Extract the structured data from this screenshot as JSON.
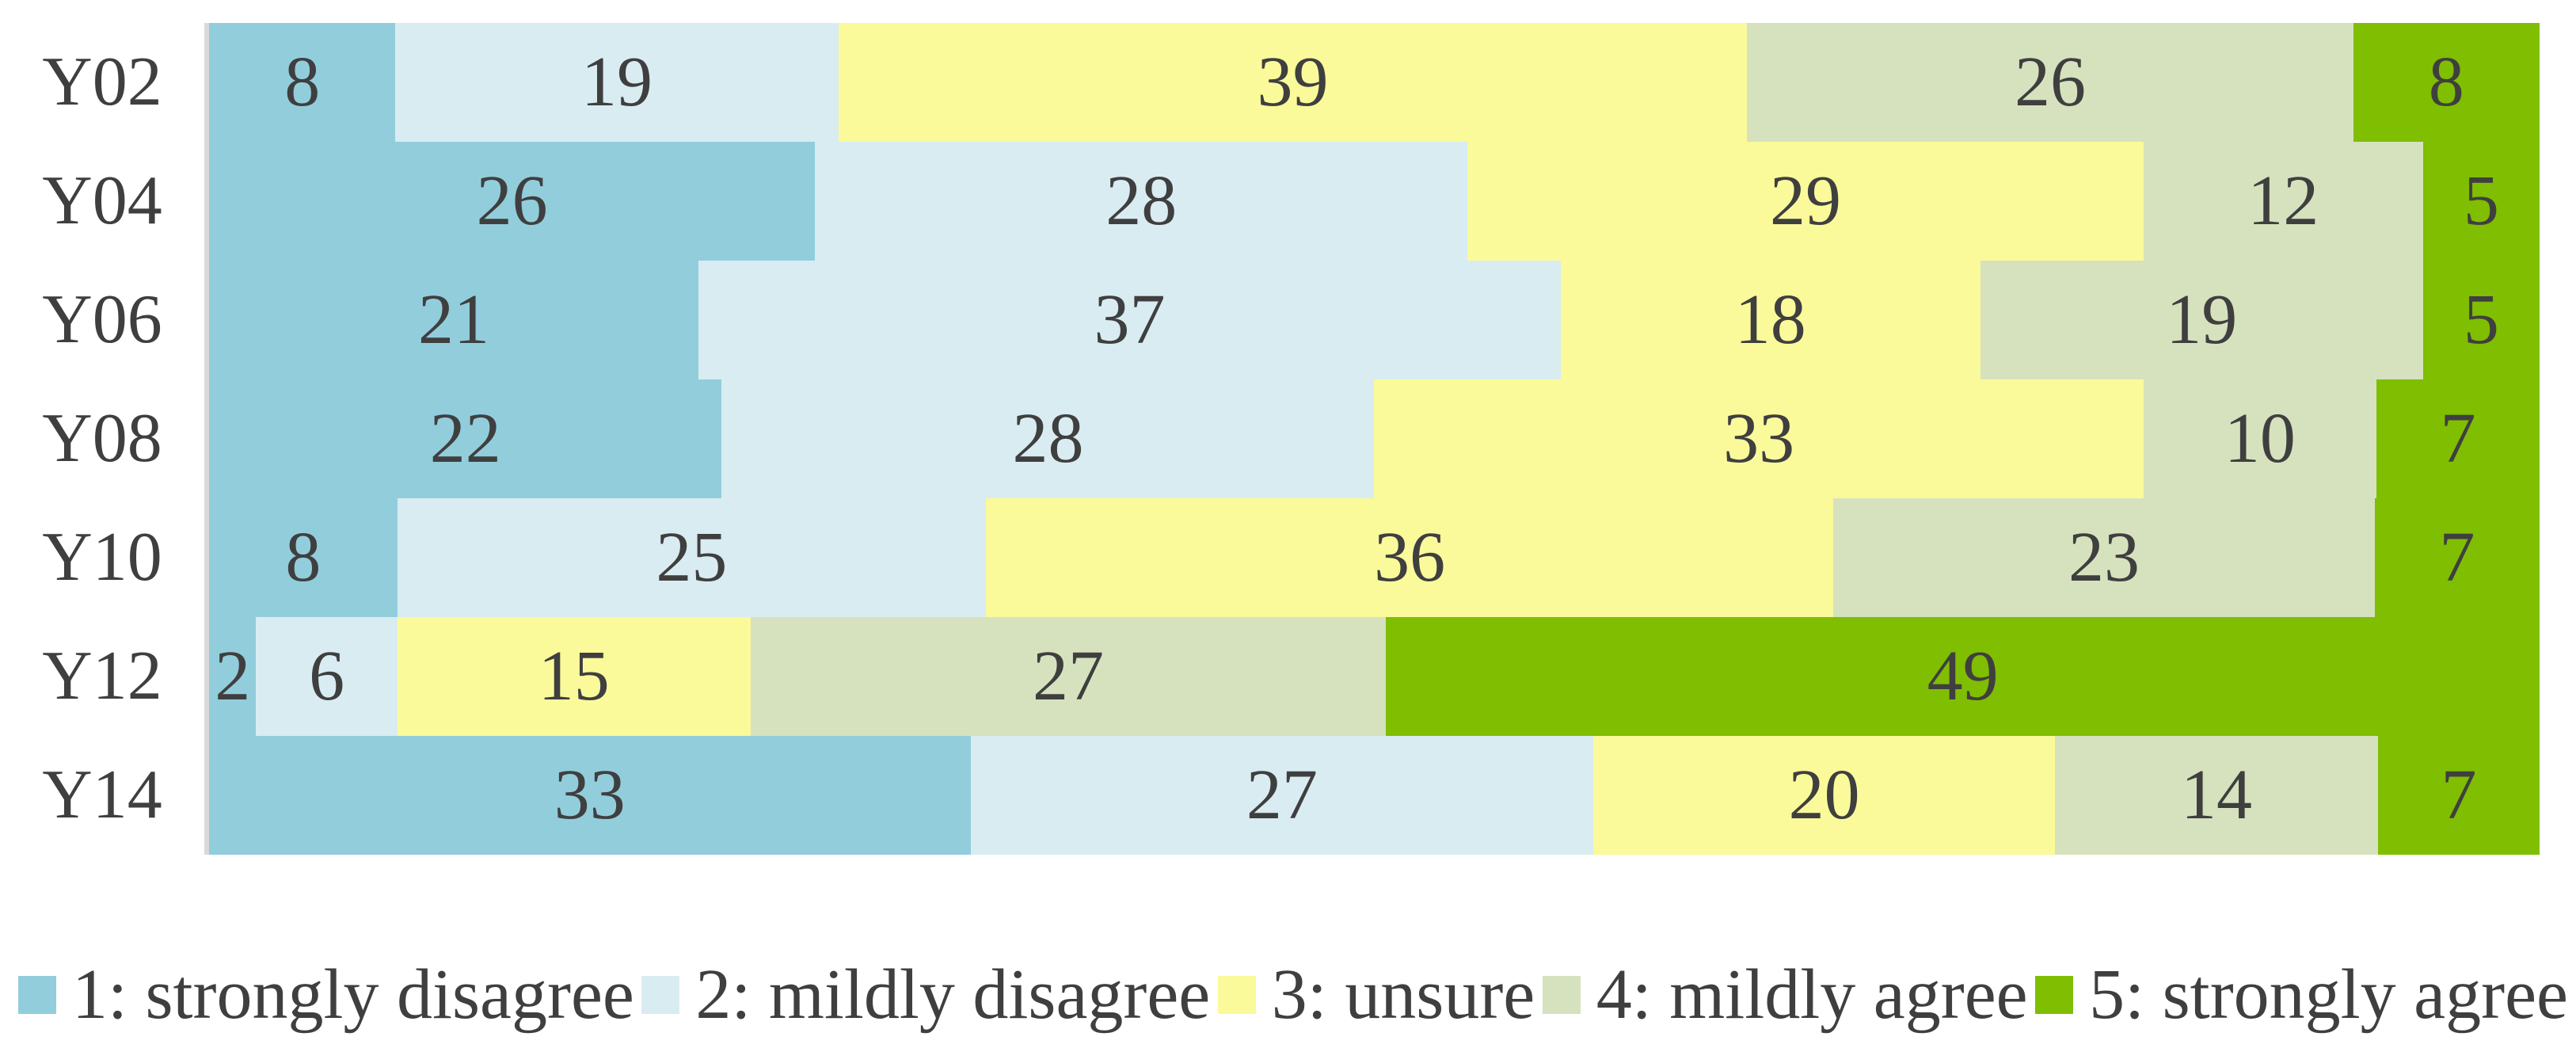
{
  "chart_data": {
    "type": "bar",
    "variant": "stacked-percent",
    "orientation": "horizontal",
    "title": "",
    "xlabel": "",
    "ylabel": "",
    "grid": false,
    "legend_position": "bottom",
    "axis_line_color": "#d9d9d9",
    "label_color": "#3f3f3f",
    "background_color": "#ffffff",
    "categories": [
      "Y02",
      "Y04",
      "Y06",
      "Y08",
      "Y10",
      "Y12",
      "Y14"
    ],
    "series": [
      {
        "name": "1: strongly disagree",
        "color": "#92cddc",
        "values": [
          8,
          26,
          21,
          22,
          8,
          2,
          33
        ]
      },
      {
        "name": "2: mildly disagree",
        "color": "#d9ecf2",
        "values": [
          19,
          28,
          37,
          28,
          25,
          6,
          27
        ]
      },
      {
        "name": "3: unsure",
        "color": "#fafa9b",
        "values": [
          39,
          29,
          18,
          33,
          36,
          15,
          20
        ]
      },
      {
        "name": "4: mildly agree",
        "color": "#d6e2be",
        "values": [
          26,
          12,
          19,
          10,
          23,
          27,
          14
        ]
      },
      {
        "name": "5: strongly agree",
        "color": "#7fbe00",
        "values": [
          8,
          5,
          5,
          7,
          7,
          49,
          7
        ]
      }
    ]
  }
}
